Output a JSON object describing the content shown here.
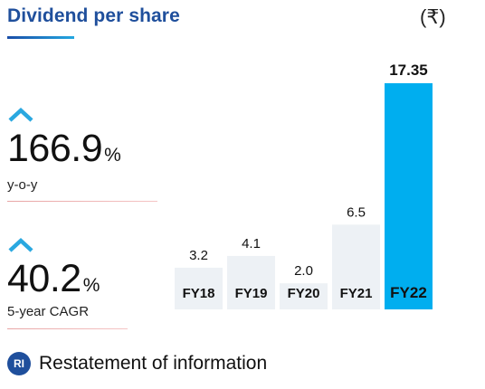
{
  "header": {
    "title": "Dividend per share",
    "currency": "(₹)"
  },
  "stats": [
    {
      "value": "166.9",
      "unit": "%",
      "label": "y-o-y",
      "direction": "up"
    },
    {
      "value": "40.2",
      "unit": "%",
      "label": "5-year CAGR",
      "direction": "up"
    }
  ],
  "legend": {
    "badge": "RI",
    "text": "Restatement of information"
  },
  "colors": {
    "title": "#1f4f9c",
    "bar": "#edf1f5",
    "highlight": "#00aeef",
    "icon": "#2aa8e0"
  },
  "chart_data": {
    "type": "bar",
    "categories": [
      "FY18",
      "FY19",
      "FY20",
      "FY21",
      "FY22"
    ],
    "values": [
      3.2,
      4.1,
      2.0,
      6.5,
      17.35
    ],
    "value_labels": [
      "3.2",
      "4.1",
      "2.0",
      "6.5",
      "17.35"
    ],
    "highlight_index": 4,
    "title": "Dividend per share",
    "ylabel": "(₹)",
    "xlabel": "",
    "ylim": [
      0,
      17.35
    ],
    "grid": false
  }
}
